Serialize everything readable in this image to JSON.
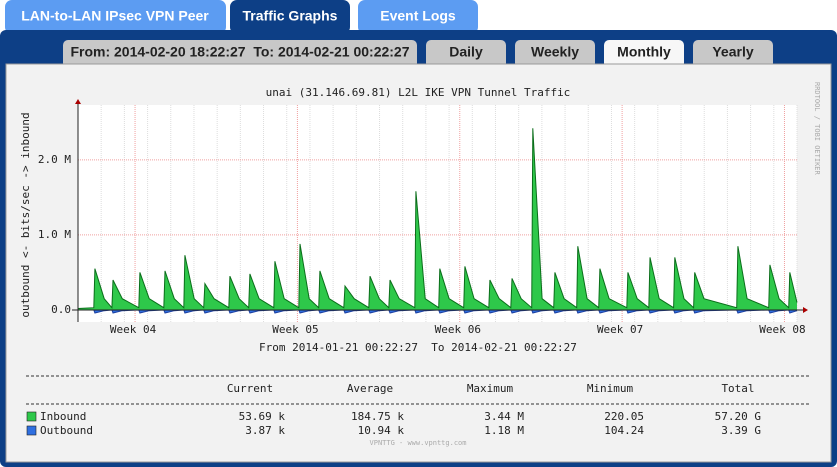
{
  "tabs": [
    "LAN-to-LAN IPsec VPN Peer",
    "Traffic Graphs",
    "Event Logs"
  ],
  "period_tabs": [
    "From: 2014-02-20 18:22:27  To: 2014-02-21 00:22:27",
    "Daily",
    "Weekly",
    "Monthly",
    "Yearly"
  ],
  "chart_data": {
    "type": "area",
    "title": "unai (31.146.69.81) L2L IKE VPN Tunnel Traffic",
    "subtitle": "From 2014-01-21 00:22:27  To 2014-02-21 00:22:27",
    "y_label": "outbound <- bits/sec -> inbound",
    "watermark": "RRDTOOL / TOBI OETIKER",
    "footer": "VPNTTG - www.vpnttg.com",
    "grid": true,
    "xlim": [
      0,
      31
    ],
    "xticks": [
      {
        "value": 2.46,
        "label": "Week 04"
      },
      {
        "value": 9.46,
        "label": "Week 05"
      },
      {
        "value": 16.46,
        "label": "Week 06"
      },
      {
        "value": 23.46,
        "label": "Week 07"
      },
      {
        "value": 30.46,
        "label": "Week 08"
      }
    ],
    "ylim": [
      -160000,
      2730000
    ],
    "yticks": [
      {
        "value": 0,
        "label": "0.0"
      },
      {
        "value": 1000000,
        "label": "1.0 M"
      },
      {
        "value": 2000000,
        "label": "2.0 M"
      }
    ],
    "x": [
      0,
      0.68,
      0.73,
      1.13,
      1.46,
      1.51,
      1.91,
      2.62,
      2.67,
      3.07,
      3.7,
      3.75,
      4.15,
      4.56,
      4.61,
      5.01,
      5.42,
      5.47,
      5.87,
      6.5,
      6.55,
      6.95,
      7.36,
      7.41,
      7.81,
      8.44,
      8.49,
      8.89,
      9.52,
      9.57,
      9.97,
      10.38,
      10.43,
      10.83,
      11.46,
      11.51,
      11.91,
      12.54,
      12.59,
      12.99,
      13.4,
      13.45,
      13.85,
      14.52,
      14.57,
      14.97,
      15.55,
      15.6,
      16.0,
      16.63,
      16.68,
      17.08,
      17.71,
      17.76,
      18.16,
      18.66,
      18.71,
      19.11,
      19.56,
      19.61,
      20.01,
      20.51,
      20.56,
      20.96,
      21.5,
      21.55,
      21.95,
      22.45,
      22.5,
      22.9,
      23.66,
      23.71,
      24.11,
      24.61,
      24.66,
      25.06,
      25.68,
      25.73,
      26.13,
      26.54,
      26.59,
      26.99,
      28.4,
      28.45,
      28.85,
      29.78,
      29.83,
      30.23,
      30.64,
      30.69,
      31
    ],
    "series": [
      {
        "name": "Inbound",
        "color": "#2ec84a",
        "line_color": "#0a6e1a",
        "values": [
          20000,
          30000,
          550000,
          150000,
          30000,
          400000,
          150000,
          30000,
          500000,
          150000,
          30000,
          520000,
          150000,
          30000,
          730000,
          150000,
          30000,
          350000,
          150000,
          30000,
          450000,
          150000,
          30000,
          480000,
          150000,
          30000,
          650000,
          150000,
          30000,
          880000,
          150000,
          30000,
          520000,
          150000,
          30000,
          320000,
          150000,
          30000,
          450000,
          150000,
          30000,
          400000,
          150000,
          30000,
          1580000,
          150000,
          30000,
          550000,
          150000,
          30000,
          580000,
          150000,
          30000,
          400000,
          150000,
          30000,
          420000,
          150000,
          30000,
          2420000,
          150000,
          30000,
          500000,
          150000,
          30000,
          850000,
          150000,
          30000,
          550000,
          150000,
          30000,
          500000,
          150000,
          30000,
          700000,
          150000,
          30000,
          700000,
          150000,
          30000,
          500000,
          150000,
          30000,
          850000,
          150000,
          30000,
          600000,
          150000,
          30000,
          500000,
          100000
        ]
      },
      {
        "name": "Outbound",
        "color": "#2f6fe0",
        "line_color": "#1c3fa0",
        "values": [
          0,
          0,
          -40000,
          -10000,
          0,
          -40000,
          -10000,
          0,
          -40000,
          -10000,
          0,
          -40000,
          -10000,
          0,
          -40000,
          -10000,
          0,
          -40000,
          -10000,
          0,
          -40000,
          -10000,
          0,
          -40000,
          -10000,
          0,
          -40000,
          -10000,
          0,
          -40000,
          -10000,
          0,
          -40000,
          -10000,
          0,
          -40000,
          -10000,
          0,
          -40000,
          -10000,
          0,
          -40000,
          -10000,
          0,
          -40000,
          -10000,
          0,
          -40000,
          -10000,
          0,
          -40000,
          -10000,
          0,
          -40000,
          -10000,
          0,
          -40000,
          -10000,
          0,
          -40000,
          -10000,
          0,
          -40000,
          -10000,
          0,
          -40000,
          -10000,
          0,
          -40000,
          -10000,
          0,
          -40000,
          -10000,
          0,
          -40000,
          -10000,
          0,
          -40000,
          -10000,
          0,
          -40000,
          -10000,
          0,
          -40000,
          -10000,
          0,
          -40000,
          -10000,
          0,
          -40000,
          -10000
        ]
      }
    ]
  },
  "stats": {
    "columns": [
      "Current",
      "Average",
      "Maximum",
      "Minimum",
      "Total"
    ],
    "rows": [
      [
        "53.69 k",
        "184.75 k",
        "3.44 M",
        "220.05",
        "57.20 G"
      ],
      [
        "3.87 k",
        "10.94 k",
        "1.18 M",
        "104.24",
        "3.39 G"
      ]
    ]
  }
}
